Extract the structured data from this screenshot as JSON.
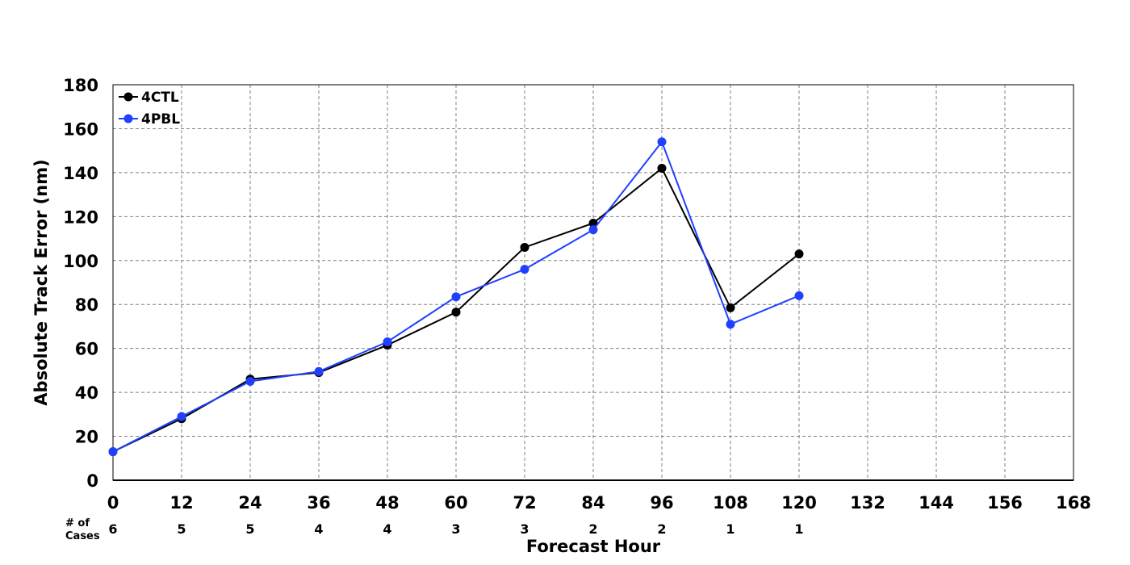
{
  "chart_data": {
    "type": "line",
    "xlabel": "Forecast Hour",
    "ylabel": "Absolute Track Error (nm)",
    "xlim": [
      0,
      168
    ],
    "ylim": [
      0,
      180
    ],
    "x_ticks": [
      0,
      12,
      24,
      36,
      48,
      60,
      72,
      84,
      96,
      108,
      120,
      132,
      144,
      156,
      168
    ],
    "y_ticks": [
      0,
      20,
      40,
      60,
      80,
      100,
      120,
      140,
      160,
      180
    ],
    "grid": true,
    "legend_position": "top-left",
    "series": [
      {
        "name": "4CTL",
        "color": "#000000",
        "x": [
          0,
          12,
          24,
          36,
          48,
          60,
          72,
          84,
          96,
          108,
          120
        ],
        "values": [
          13,
          28,
          46,
          49,
          61.5,
          76.5,
          106,
          117,
          142,
          78.5,
          103
        ]
      },
      {
        "name": "4PBL",
        "color": "#2040ff",
        "x": [
          0,
          12,
          24,
          36,
          48,
          60,
          72,
          84,
          96,
          108,
          120
        ],
        "values": [
          13,
          29,
          45,
          49.5,
          63,
          83.5,
          96,
          114,
          154,
          71,
          84
        ]
      }
    ],
    "cases_label": "# of\nCases",
    "cases": {
      "x": [
        0,
        12,
        24,
        36,
        48,
        60,
        72,
        84,
        96,
        108,
        120
      ],
      "values": [
        "6",
        "5",
        "5",
        "4",
        "4",
        "3",
        "3",
        "2",
        "2",
        "1",
        "1"
      ]
    }
  }
}
